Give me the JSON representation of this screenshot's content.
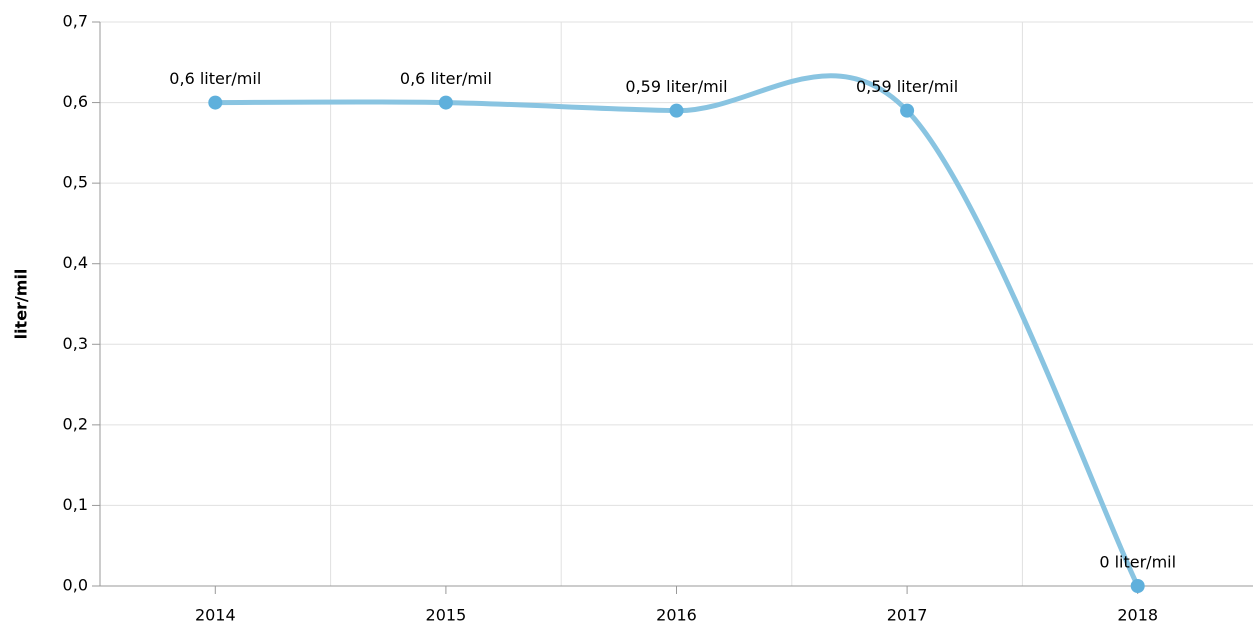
{
  "chart_data": {
    "type": "line",
    "y_label": "liter/mil",
    "categories": [
      "2014",
      "2015",
      "2016",
      "2017",
      "2018"
    ],
    "series": [
      {
        "name": "liter/mil",
        "color": "#89c4e1",
        "marker_color": "#5fb0dc",
        "values": [
          0.6,
          0.6,
          0.59,
          0.59,
          0
        ],
        "value_labels": [
          "0,6 liter/mil",
          "0,6 liter/mil",
          "0,59 liter/mil",
          "0,59 liter/mil",
          "0 liter/mil"
        ]
      }
    ],
    "ylim": [
      0,
      0.7
    ],
    "yticks": [
      {
        "value": 0,
        "label": "0,0"
      },
      {
        "value": 0.1,
        "label": "0,1"
      },
      {
        "value": 0.2,
        "label": "0,2"
      },
      {
        "value": 0.3,
        "label": "0,3"
      },
      {
        "value": 0.4,
        "label": "0,4"
      },
      {
        "value": 0.5,
        "label": "0,5"
      },
      {
        "value": 0.6,
        "label": "0,6"
      },
      {
        "value": 0.7,
        "label": "0,7"
      }
    ],
    "grid": true,
    "smooth": true
  }
}
